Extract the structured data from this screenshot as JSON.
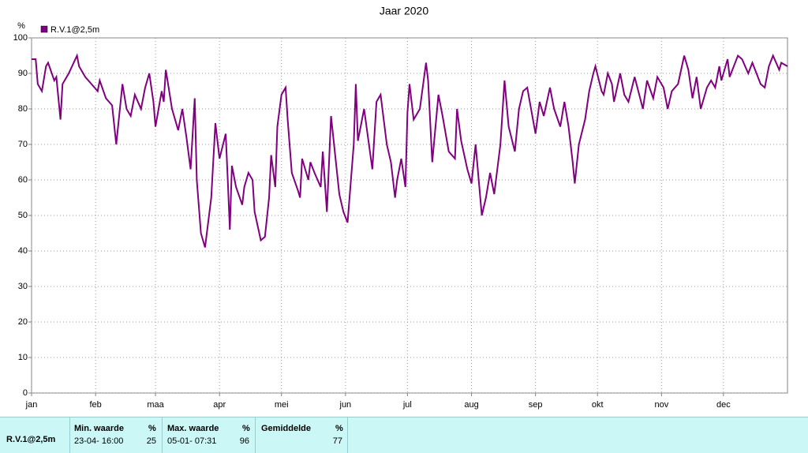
{
  "chart_data": {
    "type": "line",
    "title": "Jaar 2020",
    "y_label": "%",
    "xlim": [
      0,
      366
    ],
    "xticks": [
      {
        "value": 0,
        "label": "jan"
      },
      {
        "value": 31,
        "label": "feb"
      },
      {
        "value": 60,
        "label": "maa"
      },
      {
        "value": 91,
        "label": "apr"
      },
      {
        "value": 121,
        "label": "mei"
      },
      {
        "value": 152,
        "label": "jun"
      },
      {
        "value": 182,
        "label": "jul"
      },
      {
        "value": 213,
        "label": "aug"
      },
      {
        "value": 244,
        "label": "sep"
      },
      {
        "value": 274,
        "label": "okt"
      },
      {
        "value": 305,
        "label": "nov"
      },
      {
        "value": 335,
        "label": "dec"
      }
    ],
    "ylim": [
      0,
      100
    ],
    "yticks": [
      0,
      10,
      20,
      30,
      40,
      50,
      60,
      70,
      80,
      90,
      100
    ],
    "grid": true,
    "series": [
      {
        "name": "R.V.1@2,5m",
        "color": "#800080",
        "x": [
          0,
          2,
          3,
          5,
          7,
          8,
          11,
          12,
          14,
          15,
          18,
          22,
          23,
          26,
          29,
          32,
          33,
          36,
          39,
          41,
          44,
          46,
          48,
          50,
          53,
          55,
          57,
          59,
          60,
          63,
          64,
          65,
          68,
          71,
          73,
          75,
          77,
          79,
          80,
          82,
          84,
          87,
          89,
          91,
          94,
          95,
          96,
          97,
          99,
          102,
          103,
          105,
          107,
          108,
          111,
          113,
          115,
          116,
          118,
          119,
          121,
          123,
          124,
          126,
          129,
          130,
          131,
          134,
          135,
          137,
          140,
          141,
          143,
          145,
          147,
          149,
          151,
          153,
          156,
          157,
          158,
          161,
          165,
          167,
          169,
          172,
          174,
          176,
          177,
          179,
          181,
          182,
          183,
          185,
          188,
          191,
          192,
          194,
          197,
          199,
          202,
          205,
          206,
          208,
          211,
          213,
          215,
          218,
          220,
          222,
          224,
          227,
          229,
          231,
          234,
          236,
          238,
          240,
          244,
          246,
          248,
          251,
          253,
          256,
          258,
          260,
          262,
          263,
          265,
          268,
          270,
          272,
          273,
          276,
          277,
          279,
          281,
          282,
          285,
          287,
          289,
          292,
          296,
          298,
          301,
          303,
          306,
          308,
          310,
          313,
          316,
          318,
          320,
          322,
          324,
          327,
          329,
          331,
          333,
          334,
          337,
          338,
          342,
          344,
          347,
          349,
          353,
          355,
          357,
          359,
          362,
          363,
          366
        ],
        "values": [
          94,
          94,
          87,
          85,
          92,
          93,
          88,
          89,
          77,
          87,
          90,
          95,
          92,
          89,
          87,
          85,
          88,
          83,
          81,
          70,
          87,
          80,
          78,
          84,
          80,
          86,
          90,
          82,
          75,
          85,
          82,
          91,
          80,
          74,
          80,
          72,
          63,
          83,
          60,
          45,
          41,
          55,
          76,
          66,
          73,
          60,
          46,
          64,
          58,
          53,
          58,
          62,
          60,
          51,
          43,
          44,
          55,
          67,
          58,
          75,
          84,
          86,
          77,
          62,
          57,
          55,
          66,
          60,
          65,
          62,
          58,
          68,
          51,
          78,
          67,
          56,
          51,
          48,
          70,
          87,
          71,
          80,
          63,
          82,
          84,
          70,
          65,
          55,
          60,
          66,
          58,
          79,
          87,
          77,
          80,
          93,
          88,
          65,
          84,
          78,
          68,
          66,
          80,
          71,
          63,
          59,
          70,
          50,
          55,
          62,
          56,
          70,
          88,
          75,
          68,
          80,
          85,
          86,
          73,
          82,
          78,
          86,
          80,
          75,
          82,
          75,
          65,
          59,
          70,
          77,
          85,
          90,
          92,
          85,
          84,
          90,
          87,
          82,
          90,
          84,
          82,
          89,
          80,
          88,
          83,
          89,
          86,
          80,
          85,
          87,
          95,
          91,
          83,
          89,
          80,
          86,
          88,
          86,
          92,
          88,
          94,
          89,
          95,
          94,
          90,
          93,
          87,
          86,
          92,
          95,
          91,
          93,
          92
        ]
      }
    ]
  },
  "footer": {
    "series_name": "R.V.1@2,5m",
    "columns": [
      {
        "header": "Min. waarde",
        "unit": "%",
        "time": "23-04- 16:00",
        "value": 25
      },
      {
        "header": "Max. waarde",
        "unit": "%",
        "time": "05-01- 07:31",
        "value": 96
      },
      {
        "header": "Gemiddelde",
        "unit": "%",
        "value": 77
      }
    ]
  }
}
